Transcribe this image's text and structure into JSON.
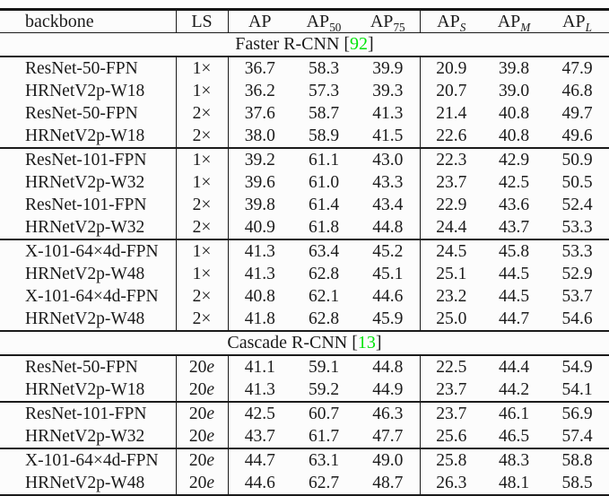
{
  "table": {
    "col_headers": [
      {
        "text": "backbone",
        "sub": ""
      },
      {
        "text": "LS",
        "sub": ""
      },
      {
        "text": "AP",
        "sub": ""
      },
      {
        "text": "AP",
        "sub": "50"
      },
      {
        "text": "AP",
        "sub": "75"
      },
      {
        "text": "AP",
        "sub": "S"
      },
      {
        "text": "AP",
        "sub": "M"
      },
      {
        "text": "AP",
        "sub": "L"
      }
    ],
    "column_keys": [
      "backbone",
      "ls",
      "ap",
      "ap50",
      "ap75",
      "ap-s",
      "ap-m",
      "ap-l"
    ],
    "sections": [
      {
        "title": "Faster R-CNN",
        "citation": "92",
        "groups": [
          [
            [
              "ResNet-50-FPN",
              "1×",
              "36.7",
              "58.3",
              "39.9",
              "20.9",
              "39.8",
              "47.9"
            ],
            [
              "HRNetV2p-W18",
              "1×",
              "36.2",
              "57.3",
              "39.3",
              "20.7",
              "39.0",
              "46.8"
            ],
            [
              "ResNet-50-FPN",
              "2×",
              "37.6",
              "58.7",
              "41.3",
              "21.4",
              "40.8",
              "49.7"
            ],
            [
              "HRNetV2p-W18",
              "2×",
              "38.0",
              "58.9",
              "41.5",
              "22.6",
              "40.8",
              "49.6"
            ]
          ],
          [
            [
              "ResNet-101-FPN",
              "1×",
              "39.2",
              "61.1",
              "43.0",
              "22.3",
              "42.9",
              "50.9"
            ],
            [
              "HRNetV2p-W32",
              "1×",
              "39.6",
              "61.0",
              "43.3",
              "23.7",
              "42.5",
              "50.5"
            ],
            [
              "ResNet-101-FPN",
              "2×",
              "39.8",
              "61.4",
              "43.4",
              "22.9",
              "43.6",
              "52.4"
            ],
            [
              "HRNetV2p-W32",
              "2×",
              "40.9",
              "61.8",
              "44.8",
              "24.4",
              "43.7",
              "53.3"
            ]
          ],
          [
            [
              "X-101-64×4d-FPN",
              "1×",
              "41.3",
              "63.4",
              "45.2",
              "24.5",
              "45.8",
              "53.3"
            ],
            [
              "HRNetV2p-W48",
              "1×",
              "41.3",
              "62.8",
              "45.1",
              "25.1",
              "44.5",
              "52.9"
            ],
            [
              "X-101-64×4d-FPN",
              "2×",
              "40.8",
              "62.1",
              "44.6",
              "23.2",
              "44.5",
              "53.7"
            ],
            [
              "HRNetV2p-W48",
              "2×",
              "41.8",
              "62.8",
              "45.9",
              "25.0",
              "44.7",
              "54.6"
            ]
          ]
        ]
      },
      {
        "title": "Cascade R-CNN",
        "citation": "13",
        "groups": [
          [
            [
              "ResNet-50-FPN",
              "20e",
              "41.1",
              "59.1",
              "44.8",
              "22.5",
              "44.4",
              "54.9"
            ],
            [
              "HRNetV2p-W18",
              "20e",
              "41.3",
              "59.2",
              "44.9",
              "23.7",
              "44.2",
              "54.1"
            ]
          ],
          [
            [
              "ResNet-101-FPN",
              "20e",
              "42.5",
              "60.7",
              "46.3",
              "23.7",
              "46.1",
              "56.9"
            ],
            [
              "HRNetV2p-W32",
              "20e",
              "43.7",
              "61.7",
              "47.7",
              "25.6",
              "46.5",
              "57.4"
            ]
          ],
          [
            [
              "X-101-64×4d-FPN",
              "20e",
              "44.7",
              "63.1",
              "49.0",
              "25.8",
              "48.3",
              "58.8"
            ],
            [
              "HRNetV2p-W48",
              "20e",
              "44.6",
              "62.7",
              "48.7",
              "26.3",
              "48.1",
              "58.5"
            ]
          ]
        ]
      }
    ],
    "colors": {
      "citation_green": "#00e40a",
      "ink": "#1b1b1b"
    }
  }
}
